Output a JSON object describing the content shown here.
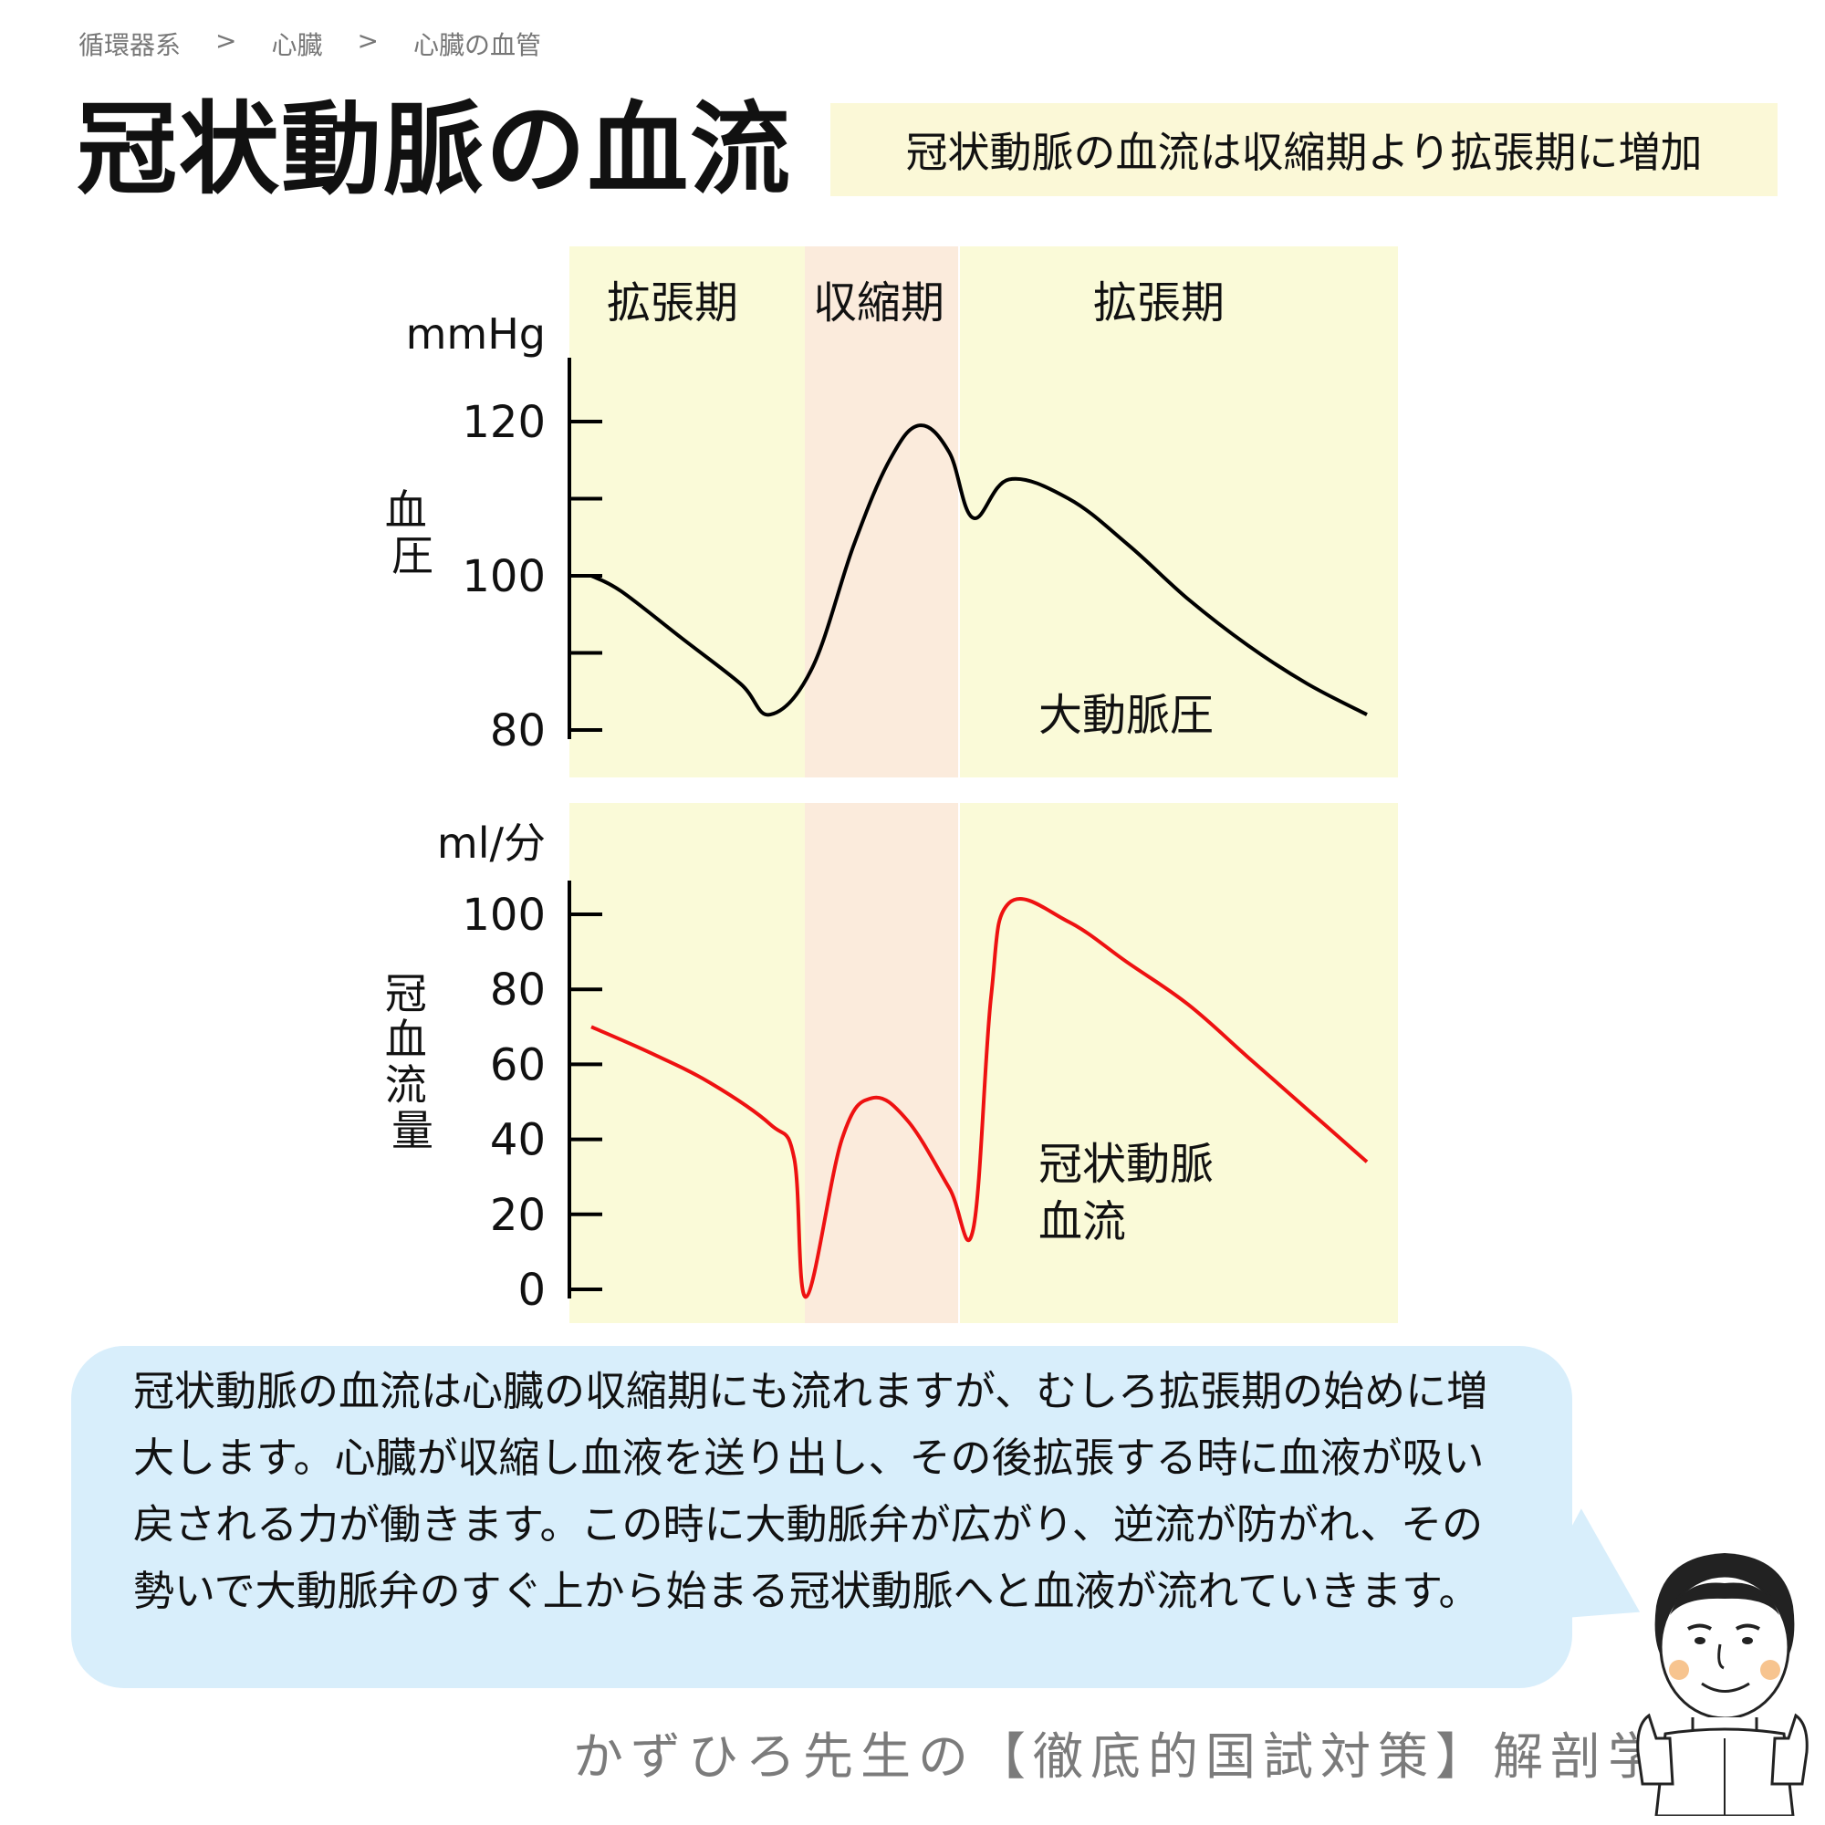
{
  "breadcrumb": {
    "items": [
      "循環器系",
      "心臓",
      "心臓の血管"
    ],
    "separator": ">"
  },
  "title": "冠状動脈の血流",
  "summary": "冠状動脈の血流は収縮期より拡張期に増加",
  "phases": [
    "拡張期",
    "収縮期",
    "拡張期"
  ],
  "colors": {
    "diastole_bg": "#fafad8",
    "systole_bg": "#fbebdc",
    "pressure_line": "#000000",
    "flow_line": "#ee1111",
    "bubble_bg": "#d8eefb",
    "summary_bg": "#fbf8d7"
  },
  "chart_data": [
    {
      "type": "line",
      "unit": "mmHg",
      "ylabel": "血圧",
      "ylim": [
        80,
        120
      ],
      "yticks": [
        120,
        100,
        80
      ],
      "series": [
        {
          "name": "大動脈圧",
          "points": [
            [
              0,
              100
            ],
            [
              0.05,
              98
            ],
            [
              0.15,
              92
            ],
            [
              0.25,
              86
            ],
            [
              0.3,
              82
            ],
            [
              0.37,
              88
            ],
            [
              0.44,
              104
            ],
            [
              0.5,
              115
            ],
            [
              0.55,
              119.5
            ],
            [
              0.6,
              116
            ],
            [
              0.64,
              107.5
            ],
            [
              0.7,
              112.5
            ],
            [
              0.8,
              110
            ],
            [
              0.9,
              104
            ],
            [
              1.0,
              97
            ],
            [
              1.1,
              91
            ],
            [
              1.2,
              86
            ],
            [
              1.3,
              82
            ]
          ]
        }
      ]
    },
    {
      "type": "line",
      "unit": "ml/分",
      "ylabel": "冠血流量",
      "ylim": [
        0,
        100
      ],
      "yticks": [
        100,
        80,
        60,
        40,
        20,
        0
      ],
      "series": [
        {
          "name": "冠状動脈血流",
          "label_lines": [
            "冠状動脈",
            "血流"
          ],
          "points": [
            [
              0,
              70
            ],
            [
              0.1,
              63
            ],
            [
              0.2,
              55
            ],
            [
              0.3,
              44
            ],
            [
              0.34,
              35
            ],
            [
              0.36,
              -2
            ],
            [
              0.42,
              40
            ],
            [
              0.47,
              51
            ],
            [
              0.53,
              45
            ],
            [
              0.6,
              27
            ],
            [
              0.64,
              16
            ],
            [
              0.67,
              78
            ],
            [
              0.7,
              103
            ],
            [
              0.8,
              98
            ],
            [
              0.9,
              87
            ],
            [
              1.0,
              76
            ],
            [
              1.1,
              62
            ],
            [
              1.2,
              48
            ],
            [
              1.3,
              34
            ]
          ]
        }
      ]
    }
  ],
  "explanation": "冠状動脈の血流は心臓の収縮期にも流れますが、むしろ拡張期の始めに増大します。心臓が収縮し血液を送り出し、その後拡張する時に血液が吸い戻される力が働きます。この時に大動脈弁が広がり、逆流が防がれ、その勢いで大動脈弁のすぐ上から始まる冠状動脈へと血液が流れていきます。",
  "footer": "かずひろ先生の【徹底的国試対策】解剖学"
}
